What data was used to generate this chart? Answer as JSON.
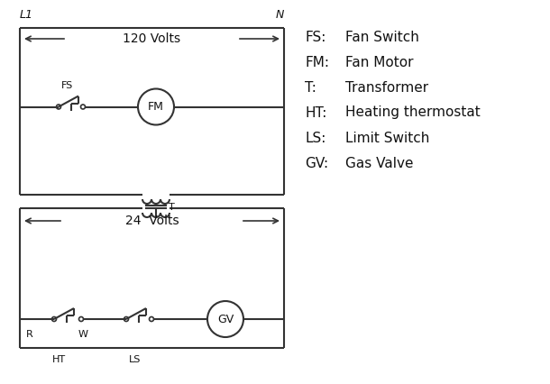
{
  "background_color": "#ffffff",
  "line_color": "#333333",
  "text_color": "#111111",
  "legend": [
    [
      "FS:",
      "Fan Switch"
    ],
    [
      "FM:",
      "Fan Motor"
    ],
    [
      "T:",
      "Transformer"
    ],
    [
      "HT:",
      "Heating thermostat"
    ],
    [
      "LS:",
      "Limit Switch"
    ],
    [
      "GV:",
      "Gas Valve"
    ]
  ],
  "L1_label": "L1",
  "N_label": "N",
  "volts120_label": "120 Volts",
  "volts24_label": "24  Volts",
  "FS_label": "FS",
  "FM_label": "FM",
  "T_label": "T",
  "HT_label": "HT",
  "LS_label": "LS",
  "GV_label": "GV",
  "R_label": "R",
  "W_label": "W"
}
